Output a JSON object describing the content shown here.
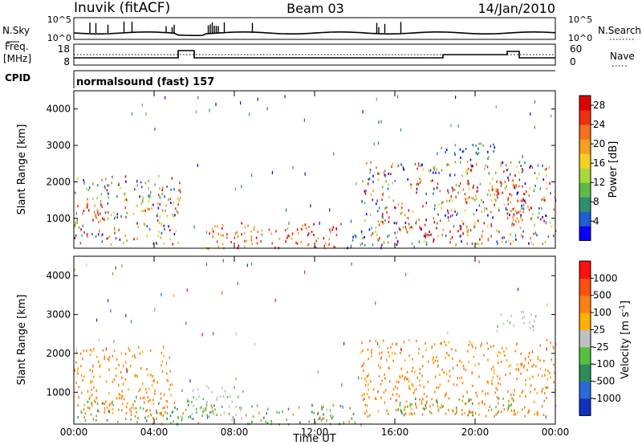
{
  "header": {
    "station": "Inuvik (fitACF)",
    "beam": "Beam 03",
    "date": "14/Jan/2010"
  },
  "top_panels": {
    "nsky": {
      "label": "N.Sky",
      "y_ticks": [
        "10^5",
        "10^0"
      ],
      "right_label": "N.Search",
      "right_ticks": [
        "10^5",
        "10^0"
      ],
      "right_legend_style": "dotted"
    },
    "freq": {
      "label_line1": "Freq.",
      "label_line2": "[MHz]",
      "y_ticks": [
        "18",
        "8"
      ],
      "right_label": "Nave",
      "right_ticks": [
        "60",
        "0"
      ],
      "right_legend_style": "dotted"
    },
    "cpid": {
      "label": "CPID",
      "text": "normalsound (fast) 157"
    }
  },
  "chart_data": [
    {
      "type": "heatmap",
      "name": "power",
      "ylabel": "Slant Range [km]",
      "y_ticks": [
        1000,
        2000,
        3000,
        4000
      ],
      "ylim": [
        180,
        4500
      ],
      "x_ticks": [
        "00:00",
        "04:00",
        "08:00",
        "12:00",
        "16:00",
        "20:00",
        "00:00"
      ],
      "xlim_hours": [
        0,
        24
      ],
      "colorbar": {
        "label": "Power [dB]",
        "ticks": [
          4,
          8,
          12,
          16,
          20,
          24,
          28
        ],
        "range": [
          0,
          30
        ],
        "colors": [
          "#0a00ff",
          "#1f5fd0",
          "#2f8f6f",
          "#5fb84a",
          "#a8d83a",
          "#f5d020",
          "#f5a020",
          "#f57020",
          "#f03010",
          "#e00000"
        ]
      },
      "echo_regions": [
        {
          "t": [
            0,
            5.3
          ],
          "r": [
            300,
            2200
          ],
          "level": "mid"
        },
        {
          "t": [
            0.3,
            1.5
          ],
          "r": [
            900,
            1400
          ],
          "level": "high"
        },
        {
          "t": [
            6.6,
            13.5
          ],
          "r": [
            200,
            900
          ],
          "level": "high"
        },
        {
          "t": [
            13.5,
            14.5
          ],
          "r": [
            200,
            700
          ],
          "level": "low"
        },
        {
          "t": [
            14.3,
            24
          ],
          "r": [
            300,
            2600
          ],
          "level": "mid"
        },
        {
          "t": [
            16.2,
            20.5
          ],
          "r": [
            500,
            800
          ],
          "level": "high"
        },
        {
          "t": [
            18.5,
            22.5
          ],
          "r": [
            1400,
            2000
          ],
          "level": "high"
        },
        {
          "t": [
            21.5,
            22.3
          ],
          "r": [
            600,
            1300
          ],
          "level": "high"
        },
        {
          "t": [
            18.2,
            21.0
          ],
          "r": [
            2600,
            3100
          ],
          "level": "low"
        }
      ]
    },
    {
      "type": "heatmap",
      "name": "velocity",
      "ylabel": "Slant Range [km]",
      "y_ticks": [
        1000,
        2000,
        3000,
        4000
      ],
      "ylim": [
        180,
        4500
      ],
      "x_ticks": [
        "00:00",
        "04:00",
        "08:00",
        "12:00",
        "16:00",
        "20:00",
        "00:00"
      ],
      "xlabel": "Time UT",
      "xlim_hours": [
        0,
        24
      ],
      "colorbar": {
        "label": "Velocity [m s",
        "label_exp": "-1",
        "label_end": "]",
        "ticks": [
          1000,
          500,
          100,
          25,
          -25,
          -100,
          -500,
          -1000
        ],
        "colors": [
          "#1030c0",
          "#2a6ad8",
          "#2e8c5a",
          "#55c040",
          "#c0c0c0",
          "#ffb000",
          "#ff8010",
          "#ff5010",
          "#ff1010"
        ]
      },
      "echo_regions": [
        {
          "t": [
            0,
            5.0
          ],
          "r": [
            400,
            2200
          ],
          "level": "orange"
        },
        {
          "t": [
            0,
            7.0
          ],
          "r": [
            200,
            800
          ],
          "level": "green"
        },
        {
          "t": [
            5.2,
            8.5
          ],
          "r": [
            300,
            1200
          ],
          "level": "gray"
        },
        {
          "t": [
            8.5,
            14.0
          ],
          "r": [
            200,
            700
          ],
          "level": "green"
        },
        {
          "t": [
            14.3,
            24
          ],
          "r": [
            400,
            2400
          ],
          "level": "orange"
        },
        {
          "t": [
            16.0,
            22.0
          ],
          "r": [
            400,
            900
          ],
          "level": "green"
        },
        {
          "t": [
            21.0,
            23.0
          ],
          "r": [
            2600,
            3100
          ],
          "level": "gray"
        }
      ]
    }
  ]
}
